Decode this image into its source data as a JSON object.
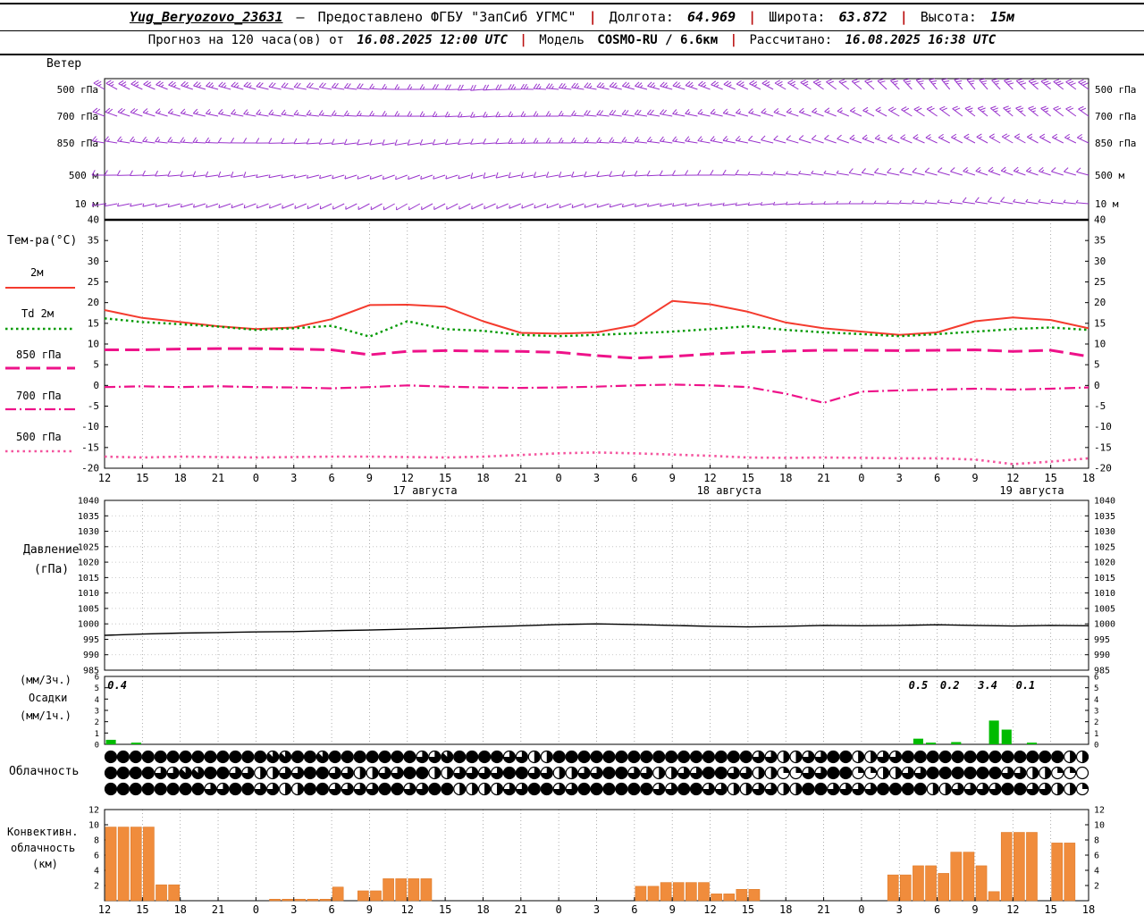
{
  "header": {
    "line1": {
      "station": "Yug_Beryozovo_23631",
      "dash": "—",
      "provider": "Предоставлено ФГБУ \"ЗапСиб УГМС\"",
      "sep": "|",
      "lon_label": "Долгота:",
      "lon_value": "64.969",
      "lat_label": "Широта:",
      "lat_value": "63.872",
      "alt_label": "Высота:",
      "alt_value": "15м"
    },
    "line2": {
      "forecast_label": "Прогноз на 120 часа(ов) от",
      "run_time": "16.08.2025 12:00 UTC",
      "sep": "|",
      "model_label": "Модель",
      "model_value": "COSMO-RU / 6.6км",
      "calc_label": "Рассчитано:",
      "calc_value": "16.08.2025 16:38 UTC"
    }
  },
  "panel_labels": {
    "wind_title": "Ветер",
    "temp_title": "Тем-ра(°C)",
    "pressure_title_1": "Давление",
    "pressure_title_2": "(гПа)",
    "precip_title_1": "(мм/3ч.)",
    "precip_title_2": "Осадки",
    "precip_title_3": "(мм/1ч.)",
    "cloud_title": "Облачность",
    "conv_title_1": "Конвективн.",
    "conv_title_2": "облачность",
    "conv_title_3": "(км)"
  },
  "chart_data": {
    "x_axis": {
      "hours_span": 78,
      "tick_step_hours": 3,
      "tick_labels": [
        "12",
        "15",
        "18",
        "21",
        "0",
        "3",
        "6",
        "9",
        "12",
        "15",
        "18",
        "21",
        "0",
        "3",
        "6",
        "9",
        "12",
        "15",
        "18",
        "21",
        "0",
        "3",
        "6",
        "9",
        "12",
        "15",
        "18"
      ],
      "dates": [
        {
          "hour": 25.4,
          "text": "17 августа"
        },
        {
          "hour": 49.5,
          "text": "18 августа"
        },
        {
          "hour": 73.5,
          "text": "19 августа"
        }
      ]
    },
    "wind": {
      "type": "wind-barbs",
      "color": "#9933cc",
      "levels": [
        {
          "label": "500 гПа",
          "barbs": [
            [
              300,
              14
            ],
            [
              295,
              14
            ],
            [
              290,
              13
            ],
            [
              285,
              12
            ],
            [
              285,
              12
            ],
            [
              280,
              11
            ],
            [
              280,
              10
            ],
            [
              275,
              10
            ],
            [
              270,
              9
            ],
            [
              270,
              10
            ],
            [
              265,
              11
            ],
            [
              270,
              12
            ],
            [
              275,
              12
            ],
            [
              280,
              13
            ],
            [
              285,
              13
            ],
            [
              285,
              14
            ],
            [
              290,
              14
            ],
            [
              295,
              13
            ],
            [
              300,
              12
            ],
            [
              305,
              12
            ],
            [
              310,
              11
            ],
            [
              315,
              12
            ],
            [
              320,
              13
            ],
            [
              320,
              14
            ],
            [
              315,
              15
            ],
            [
              310,
              16
            ],
            [
              305,
              16
            ]
          ]
        },
        {
          "label": "700 гПа",
          "barbs": [
            [
              290,
              10
            ],
            [
              288,
              10
            ],
            [
              285,
              9
            ],
            [
              282,
              9
            ],
            [
              280,
              8
            ],
            [
              278,
              8
            ],
            [
              275,
              8
            ],
            [
              272,
              7
            ],
            [
              270,
              7
            ],
            [
              268,
              8
            ],
            [
              265,
              8
            ],
            [
              268,
              9
            ],
            [
              270,
              9
            ],
            [
              275,
              10
            ],
            [
              278,
              10
            ],
            [
              280,
              10
            ],
            [
              282,
              9
            ],
            [
              285,
              9
            ],
            [
              288,
              8
            ],
            [
              290,
              8
            ],
            [
              295,
              9
            ],
            [
              300,
              10
            ],
            [
              305,
              11
            ],
            [
              308,
              12
            ],
            [
              310,
              12
            ],
            [
              308,
              12
            ],
            [
              305,
              11
            ]
          ]
        },
        {
          "label": "850 гПа",
          "barbs": [
            [
              280,
              8
            ],
            [
              278,
              8
            ],
            [
              275,
              7
            ],
            [
              272,
              7
            ],
            [
              270,
              6
            ],
            [
              268,
              6
            ],
            [
              265,
              6
            ],
            [
              262,
              5
            ],
            [
              260,
              5
            ],
            [
              262,
              6
            ],
            [
              265,
              6
            ],
            [
              268,
              7
            ],
            [
              270,
              7
            ],
            [
              272,
              8
            ],
            [
              275,
              8
            ],
            [
              278,
              8
            ],
            [
              280,
              7
            ],
            [
              282,
              7
            ],
            [
              285,
              6
            ],
            [
              288,
              6
            ],
            [
              290,
              7
            ],
            [
              292,
              8
            ],
            [
              295,
              9
            ],
            [
              298,
              9
            ],
            [
              300,
              10
            ],
            [
              298,
              9
            ],
            [
              295,
              9
            ]
          ]
        },
        {
          "label": "500 м",
          "barbs": [
            [
              270,
              6
            ],
            [
              268,
              6
            ],
            [
              265,
              5
            ],
            [
              262,
              5
            ],
            [
              260,
              5
            ],
            [
              258,
              4
            ],
            [
              255,
              4
            ],
            [
              252,
              4
            ],
            [
              250,
              4
            ],
            [
              252,
              4
            ],
            [
              255,
              5
            ],
            [
              258,
              5
            ],
            [
              260,
              6
            ],
            [
              262,
              6
            ],
            [
              265,
              6
            ],
            [
              268,
              5
            ],
            [
              270,
              5
            ],
            [
              272,
              5
            ],
            [
              275,
              4
            ],
            [
              278,
              4
            ],
            [
              280,
              5
            ],
            [
              282,
              6
            ],
            [
              285,
              6
            ],
            [
              288,
              7
            ],
            [
              290,
              7
            ],
            [
              288,
              7
            ],
            [
              285,
              6
            ]
          ]
        },
        {
          "label": "10 м",
          "barbs": [
            [
              260,
              4
            ],
            [
              258,
              4
            ],
            [
              255,
              3
            ],
            [
              252,
              3
            ],
            [
              250,
              3
            ],
            [
              248,
              2
            ],
            [
              245,
              2
            ],
            [
              242,
              2
            ],
            [
              240,
              2
            ],
            [
              242,
              3
            ],
            [
              245,
              3
            ],
            [
              248,
              4
            ],
            [
              250,
              4
            ],
            [
              252,
              4
            ],
            [
              255,
              3
            ],
            [
              258,
              3
            ],
            [
              260,
              3
            ],
            [
              262,
              2
            ],
            [
              265,
              2
            ],
            [
              268,
              3
            ],
            [
              270,
              3
            ],
            [
              272,
              4
            ],
            [
              275,
              4
            ],
            [
              278,
              5
            ],
            [
              280,
              5
            ],
            [
              278,
              4
            ],
            [
              275,
              4
            ]
          ]
        }
      ]
    },
    "temperature": {
      "type": "line",
      "ylim": [
        -20,
        40
      ],
      "yticks": [
        40,
        35,
        30,
        25,
        20,
        15,
        10,
        5,
        0,
        -5,
        -10,
        -15,
        -20
      ],
      "x_step_hours": 3,
      "series": [
        {
          "label": "2м",
          "color": "#f43b2e",
          "width": 2,
          "dash": "",
          "values": [
            18.2,
            16.3,
            15.3,
            14.3,
            13.6,
            14.0,
            16.0,
            19.4,
            19.5,
            19.0,
            15.5,
            12.7,
            12.5,
            12.8,
            14.5,
            20.4,
            19.6,
            17.8,
            15.2,
            13.8,
            13.0,
            12.2,
            12.8,
            15.5,
            16.4,
            15.8,
            13.8
          ]
        },
        {
          "label": "Td 2м",
          "color": "#009900",
          "width": 2.4,
          "dash": "2.5,3.5",
          "values": [
            16.2,
            15.3,
            14.8,
            14.2,
            13.4,
            13.8,
            14.4,
            11.8,
            15.5,
            13.6,
            13.2,
            12.2,
            11.9,
            12.2,
            12.6,
            13.0,
            13.6,
            14.3,
            13.4,
            12.8,
            12.4,
            11.9,
            12.4,
            13.0,
            13.6,
            14.0,
            13.4
          ]
        },
        {
          "label": "850 гПа",
          "color": "#ee1289",
          "width": 3,
          "dash": "16,7",
          "values": [
            8.6,
            8.6,
            8.8,
            8.9,
            8.9,
            8.8,
            8.6,
            7.4,
            8.2,
            8.4,
            8.3,
            8.2,
            8.0,
            7.2,
            6.6,
            7.0,
            7.6,
            8.0,
            8.3,
            8.5,
            8.5,
            8.4,
            8.5,
            8.6,
            8.2,
            8.5,
            7.0
          ]
        },
        {
          "label": "700 гПа",
          "color": "#ee1289",
          "width": 2.2,
          "dash": "12,4,2,4",
          "values": [
            -0.4,
            -0.2,
            -0.4,
            -0.2,
            -0.4,
            -0.5,
            -0.7,
            -0.4,
            0.0,
            -0.3,
            -0.5,
            -0.6,
            -0.5,
            -0.3,
            0.0,
            0.2,
            0.0,
            -0.4,
            -2.0,
            -4.2,
            -1.5,
            -1.2,
            -1.0,
            -0.8,
            -1.0,
            -0.8,
            -0.5
          ]
        },
        {
          "label": "500 гПа",
          "color": "#f4549e",
          "width": 2.6,
          "dash": "2.5,4",
          "values": [
            -17.2,
            -17.4,
            -17.2,
            -17.3,
            -17.4,
            -17.3,
            -17.2,
            -17.2,
            -17.3,
            -17.4,
            -17.2,
            -16.8,
            -16.4,
            -16.2,
            -16.4,
            -16.7,
            -17.0,
            -17.4,
            -17.5,
            -17.4,
            -17.5,
            -17.6,
            -17.6,
            -17.9,
            -19.0,
            -18.4,
            -17.6
          ]
        }
      ]
    },
    "pressure": {
      "type": "line",
      "color": "#000000",
      "ylim": [
        985,
        1040
      ],
      "yticks": [
        1040,
        1035,
        1030,
        1025,
        1020,
        1015,
        1010,
        1005,
        1000,
        995,
        990,
        985
      ],
      "x_step_hours": 3,
      "values": [
        996.3,
        996.7,
        997.0,
        997.2,
        997.4,
        997.5,
        997.8,
        998.0,
        998.3,
        998.6,
        999.0,
        999.4,
        999.8,
        1000.0,
        999.8,
        999.5,
        999.2,
        999.0,
        999.2,
        999.5,
        999.4,
        999.5,
        999.7,
        999.5,
        999.3,
        999.5,
        999.4
      ]
    },
    "precipitation": {
      "type": "bar",
      "color": "#00bb00",
      "ylim": [
        0,
        6
      ],
      "yticks": [
        6,
        5,
        4,
        3,
        2,
        1,
        0
      ],
      "hourly": [
        0.4,
        0,
        0.15,
        0,
        0,
        0,
        0,
        0,
        0,
        0,
        0,
        0,
        0,
        0,
        0,
        0,
        0,
        0,
        0,
        0,
        0,
        0,
        0,
        0,
        0,
        0,
        0,
        0,
        0,
        0,
        0,
        0,
        0,
        0,
        0,
        0,
        0,
        0,
        0,
        0,
        0,
        0,
        0,
        0,
        0,
        0,
        0,
        0,
        0,
        0,
        0,
        0,
        0,
        0,
        0,
        0,
        0,
        0,
        0,
        0,
        0,
        0,
        0,
        0,
        0.5,
        0.15,
        0,
        0.2,
        0,
        0,
        2.1,
        1.3,
        0,
        0.15,
        0,
        0,
        0,
        0,
        0
      ],
      "labels_3h": [
        {
          "hour": 1,
          "text": "0.4"
        },
        {
          "hour": 64.5,
          "text": "0.5"
        },
        {
          "hour": 67,
          "text": "0.2"
        },
        {
          "hour": 70,
          "text": "3.4"
        },
        {
          "hour": 73,
          "text": "0.1"
        }
      ]
    },
    "cloudiness": {
      "type": "symbols",
      "okta_rows": [
        "8888888888888778878888888667888866448888888888888888664466884466888888888888844",
        "8888667788664466886644668844666688664466886644668866442266882244668888886644220",
        "8888888866886644886666886688444466886688888866886644664488666688884466668866442"
      ]
    },
    "convective_clouds": {
      "type": "bar",
      "color": "#f08c3c",
      "ylim": [
        0,
        12
      ],
      "yticks": [
        12,
        10,
        8,
        6,
        4,
        2
      ],
      "hourly": [
        9.7,
        9.7,
        9.7,
        9.7,
        2.1,
        2.1,
        0,
        0,
        0,
        0,
        0,
        0,
        0,
        0.2,
        0.2,
        0.2,
        0.2,
        0.2,
        1.8,
        0,
        1.3,
        1.3,
        2.9,
        2.9,
        2.9,
        2.9,
        0,
        0,
        0,
        0,
        0,
        0,
        0,
        0,
        0,
        0,
        0,
        0,
        0,
        0,
        0,
        0,
        1.9,
        1.9,
        2.4,
        2.4,
        2.4,
        2.4,
        0.9,
        0.9,
        1.5,
        1.5,
        0,
        0,
        0,
        0,
        0,
        0,
        0,
        0,
        0,
        0,
        3.4,
        3.4,
        4.6,
        4.6,
        3.6,
        6.4,
        6.4,
        4.6,
        1.2,
        9,
        9,
        9,
        0,
        7.6,
        7.6,
        0,
        0
      ]
    }
  }
}
